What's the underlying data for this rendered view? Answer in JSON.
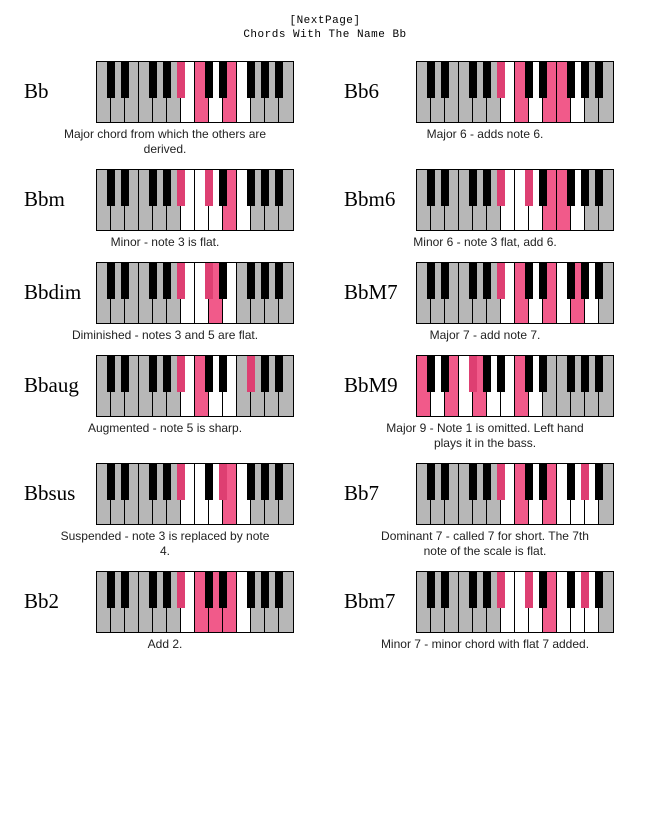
{
  "header_line1": "[NextPage]",
  "header_line2": "Chords With The Name Bb",
  "keyboard": {
    "white_count": 14,
    "white_key_width": 14,
    "height": 60,
    "black_key_width": 8,
    "black_key_height": 36,
    "border_color": "#000000",
    "grey_fill": "#b7b7b7",
    "black_fill": "#000000",
    "highlight_fill": "#f15a8a",
    "black_highlight_fill": "#de3f72",
    "white_bg": "#ffffff",
    "black_positions_semitone_in_octave": [
      1,
      3,
      6,
      8,
      10
    ]
  },
  "chords": [
    {
      "name": "Bb",
      "caption": "Major chord from which the others are derived.",
      "highlight_white": [
        7,
        9
      ],
      "highlight_black": [
        10
      ],
      "grey_white": [
        0,
        1,
        2,
        3,
        4,
        5,
        11,
        12,
        13
      ]
    },
    {
      "name": "Bb6",
      "caption": "Major 6 - adds note 6.",
      "highlight_white": [
        7,
        9,
        10
      ],
      "highlight_black": [
        10
      ],
      "grey_white": [
        0,
        1,
        2,
        3,
        4,
        5,
        12,
        13
      ]
    },
    {
      "name": "Bbm",
      "caption": "Minor - note 3 is flat.",
      "highlight_white": [
        9
      ],
      "highlight_black": [
        10,
        13
      ],
      "grey_white": [
        0,
        1,
        2,
        3,
        4,
        5,
        11,
        12,
        13
      ]
    },
    {
      "name": "Bbm6",
      "caption": "Minor 6 - note 3 flat, add 6.",
      "highlight_white": [
        9,
        10
      ],
      "highlight_black": [
        10,
        13
      ],
      "grey_white": [
        0,
        1,
        2,
        3,
        4,
        5,
        12,
        13
      ]
    },
    {
      "name": "Bbdim",
      "caption": "Diminished - notes 3 and 5 are flat.",
      "highlight_white": [
        8
      ],
      "highlight_black": [
        10,
        13
      ],
      "grey_white": [
        0,
        1,
        2,
        3,
        4,
        5,
        10,
        11,
        12,
        13
      ]
    },
    {
      "name": "BbM7",
      "caption": "Major 7 - add note 7.",
      "highlight_white": [
        7,
        9,
        11
      ],
      "highlight_black": [
        10
      ],
      "grey_white": [
        0,
        1,
        2,
        3,
        4,
        5,
        13
      ]
    },
    {
      "name": "Bbaug",
      "caption": "Augmented - note 5 is sharp.",
      "highlight_white": [
        7
      ],
      "highlight_black": [
        10,
        18
      ],
      "grey_white": [
        0,
        1,
        2,
        3,
        4,
        5,
        10,
        11,
        12,
        13
      ]
    },
    {
      "name": "BbM9",
      "caption": "Major 9 - Note 1 is omitted. Left hand plays it in the bass.",
      "highlight_white": [
        0,
        2,
        4,
        7
      ],
      "highlight_black": [
        6
      ],
      "grey_white": [
        9,
        10,
        11,
        12,
        13
      ]
    },
    {
      "name": "Bbsus",
      "caption": "Suspended - note 3 is replaced by note 4.",
      "highlight_white": [
        9
      ],
      "highlight_black": [
        10,
        15
      ],
      "grey_white": [
        0,
        1,
        2,
        3,
        4,
        5,
        11,
        12,
        13
      ]
    },
    {
      "name": "Bb7",
      "caption": "Dominant 7 - called 7 for short. The 7th note of the scale is flat.",
      "highlight_white": [
        7,
        9
      ],
      "highlight_black": [
        10,
        20
      ],
      "grey_white": [
        0,
        1,
        2,
        3,
        4,
        5,
        13
      ]
    },
    {
      "name": "Bb2",
      "caption": "Add 2.",
      "highlight_white": [
        7,
        8,
        9
      ],
      "highlight_black": [
        10
      ],
      "grey_white": [
        0,
        1,
        2,
        3,
        4,
        5,
        11,
        12,
        13
      ]
    },
    {
      "name": "Bbm7",
      "caption": "Minor 7 - minor chord with flat 7 added.",
      "highlight_white": [
        9
      ],
      "highlight_black": [
        10,
        13,
        20
      ],
      "grey_white": [
        0,
        1,
        2,
        3,
        4,
        5,
        13
      ]
    }
  ]
}
